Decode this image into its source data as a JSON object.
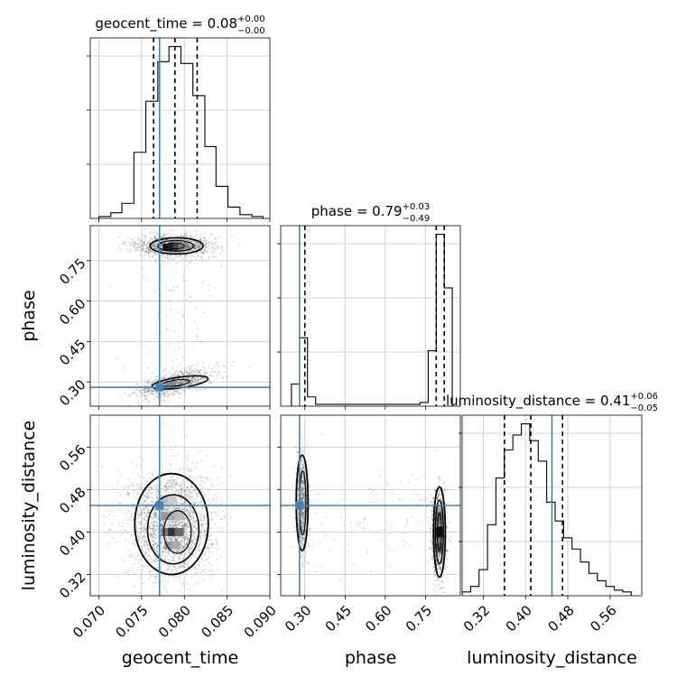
{
  "chart_data": {
    "type": "corner",
    "parameters": [
      {
        "name": "geocent_time",
        "label": "geocent_time",
        "title_main": "geocent_time = 0.08",
        "title_plus": "+0.00",
        "title_minus": "−0.00",
        "range": [
          0.069,
          0.09
        ],
        "ticks": [
          "0.070",
          "0.075",
          "0.080",
          "0.085",
          "0.090"
        ],
        "tick_values": [
          0.07,
          0.075,
          0.08,
          0.085,
          0.09
        ],
        "truth": 0.0771,
        "quantiles": [
          0.0764,
          0.0789,
          0.0815
        ],
        "hist": {
          "bin_edges": [
            0.07,
            0.0714,
            0.0727,
            0.0741,
            0.0755,
            0.0769,
            0.0782,
            0.0796,
            0.081,
            0.0824,
            0.0837,
            0.0851,
            0.0865,
            0.0879,
            0.0892
          ],
          "counts": [
            1,
            3,
            8,
            35,
            62,
            83,
            91,
            82,
            65,
            38,
            17,
            6,
            2,
            1
          ]
        }
      },
      {
        "name": "phase",
        "label": "phase",
        "title_main": "phase = 0.79",
        "title_plus": "+0.03",
        "title_minus": "−0.49",
        "range": [
          0.21,
          0.88
        ],
        "ticks": [
          "0.30",
          "0.45",
          "0.60",
          "0.75"
        ],
        "tick_values": [
          0.3,
          0.45,
          0.6,
          0.75
        ],
        "truth": 0.28,
        "quantiles": [
          0.3,
          0.79,
          0.82
        ],
        "hist": {
          "bin_edges": [
            0.25,
            0.28,
            0.31,
            0.34,
            0.37,
            0.4,
            0.43,
            0.46,
            0.49,
            0.52,
            0.55,
            0.58,
            0.61,
            0.64,
            0.67,
            0.7,
            0.73,
            0.76,
            0.79,
            0.82,
            0.85
          ],
          "counts": [
            12,
            37,
            5,
            1,
            1,
            1,
            1,
            1,
            1,
            1,
            1,
            1,
            1,
            1,
            1,
            1,
            2,
            30,
            93,
            64
          ]
        }
      },
      {
        "name": "luminosity_distance",
        "label": "luminosity_distance",
        "title_main": "luminosity_distance = 0.41",
        "title_plus": "+0.06",
        "title_minus": "−0.05",
        "range": [
          0.28,
          0.62
        ],
        "ticks": [
          "0.32",
          "0.40",
          "0.48",
          "0.56"
        ],
        "tick_values": [
          0.32,
          0.4,
          0.48,
          0.56
        ],
        "truth": 0.45,
        "quantiles": [
          0.36,
          0.41,
          0.47
        ],
        "hist": {
          "bin_edges": [
            0.28,
            0.296,
            0.312,
            0.328,
            0.344,
            0.36,
            0.376,
            0.392,
            0.408,
            0.424,
            0.44,
            0.456,
            0.472,
            0.488,
            0.504,
            0.52,
            0.536,
            0.552,
            0.568,
            0.584,
            0.6
          ],
          "counts": [
            2,
            5,
            14,
            38,
            63,
            78,
            86,
            92,
            83,
            72,
            50,
            40,
            31,
            25,
            18,
            12,
            8,
            5,
            3,
            2
          ]
        }
      }
    ],
    "truth_color": "#4682b4",
    "grid": true
  }
}
